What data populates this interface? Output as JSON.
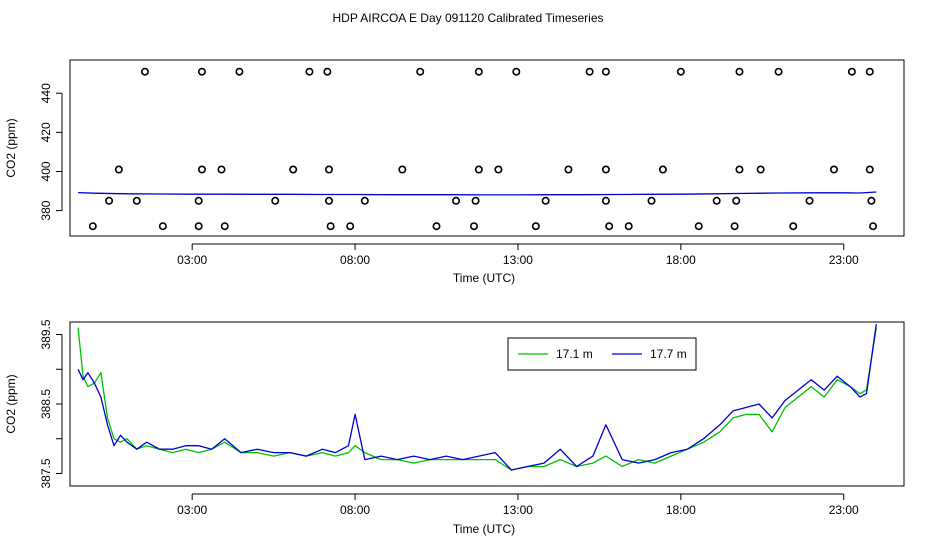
{
  "title": "HDP AIRCOA E  Day 091120  Calibrated Timeseries",
  "colors": {
    "green": "#00c000",
    "blue": "#0000d0",
    "points": "#000000"
  },
  "chart_data": [
    {
      "type": "scatter",
      "xlabel": "Time (UTC)",
      "ylabel": "CO2 (ppm)",
      "xlim": [
        -0.75,
        24.85
      ],
      "ylim": [
        367,
        457
      ],
      "xticks": [
        3,
        8,
        13,
        18,
        23
      ],
      "xtick_labels": [
        "03:00",
        "08:00",
        "13:00",
        "18:00",
        "23:00"
      ],
      "yticks": [
        380,
        400,
        420,
        440
      ],
      "yticks_labels": [
        "380",
        "400",
        "420",
        "440"
      ],
      "points": [
        {
          "x": 1.55,
          "y": 451
        },
        {
          "x": 3.3,
          "y": 451
        },
        {
          "x": 4.45,
          "y": 451
        },
        {
          "x": 6.6,
          "y": 451
        },
        {
          "x": 7.15,
          "y": 451
        },
        {
          "x": 10.0,
          "y": 451
        },
        {
          "x": 11.8,
          "y": 451
        },
        {
          "x": 12.95,
          "y": 451
        },
        {
          "x": 15.2,
          "y": 451
        },
        {
          "x": 15.7,
          "y": 451
        },
        {
          "x": 18.0,
          "y": 451
        },
        {
          "x": 19.8,
          "y": 451
        },
        {
          "x": 21.0,
          "y": 451
        },
        {
          "x": 23.25,
          "y": 451
        },
        {
          "x": 23.8,
          "y": 451
        },
        {
          "x": 0.75,
          "y": 401
        },
        {
          "x": 3.3,
          "y": 401
        },
        {
          "x": 3.9,
          "y": 401
        },
        {
          "x": 6.1,
          "y": 401
        },
        {
          "x": 7.2,
          "y": 401
        },
        {
          "x": 9.45,
          "y": 401
        },
        {
          "x": 11.8,
          "y": 401
        },
        {
          "x": 12.4,
          "y": 401
        },
        {
          "x": 14.55,
          "y": 401
        },
        {
          "x": 15.7,
          "y": 401
        },
        {
          "x": 17.45,
          "y": 401
        },
        {
          "x": 19.8,
          "y": 401
        },
        {
          "x": 20.45,
          "y": 401
        },
        {
          "x": 22.7,
          "y": 401
        },
        {
          "x": 23.8,
          "y": 401
        },
        {
          "x": 0.45,
          "y": 385
        },
        {
          "x": 1.3,
          "y": 385
        },
        {
          "x": 3.2,
          "y": 385
        },
        {
          "x": 5.55,
          "y": 385
        },
        {
          "x": 7.2,
          "y": 385
        },
        {
          "x": 8.3,
          "y": 385
        },
        {
          "x": 11.1,
          "y": 385
        },
        {
          "x": 11.7,
          "y": 385
        },
        {
          "x": 13.85,
          "y": 385
        },
        {
          "x": 15.7,
          "y": 385
        },
        {
          "x": 17.1,
          "y": 385
        },
        {
          "x": 19.1,
          "y": 385
        },
        {
          "x": 19.7,
          "y": 385
        },
        {
          "x": 21.95,
          "y": 385
        },
        {
          "x": 23.85,
          "y": 385
        },
        {
          "x": -0.05,
          "y": 372
        },
        {
          "x": 2.1,
          "y": 372
        },
        {
          "x": 3.2,
          "y": 372
        },
        {
          "x": 4.0,
          "y": 372
        },
        {
          "x": 7.25,
          "y": 372
        },
        {
          "x": 7.85,
          "y": 372
        },
        {
          "x": 10.5,
          "y": 372
        },
        {
          "x": 11.65,
          "y": 372
        },
        {
          "x": 13.55,
          "y": 372
        },
        {
          "x": 15.8,
          "y": 372
        },
        {
          "x": 16.4,
          "y": 372
        },
        {
          "x": 18.55,
          "y": 372
        },
        {
          "x": 19.65,
          "y": 372
        },
        {
          "x": 21.45,
          "y": 372
        },
        {
          "x": 23.9,
          "y": 372
        }
      ],
      "series": [
        {
          "type": "line",
          "color": "#0000d0",
          "x": [
            -0.5,
            0,
            1,
            2,
            3,
            4,
            5,
            6,
            7,
            8,
            9,
            10,
            11,
            12,
            13,
            14,
            15,
            16,
            17,
            18,
            19,
            20,
            21,
            22,
            23,
            23.5,
            24
          ],
          "y": [
            389.2,
            388.9,
            388.6,
            388.5,
            388.4,
            388.4,
            388.3,
            388.3,
            388.2,
            388.2,
            388.1,
            388.1,
            388.1,
            388.0,
            388.0,
            388.1,
            388.1,
            388.2,
            388.3,
            388.4,
            388.6,
            388.8,
            389.0,
            389.1,
            389.1,
            389.0,
            389.5
          ]
        }
      ]
    },
    {
      "type": "line",
      "xlabel": "Time (UTC)",
      "ylabel": "CO2 (ppm)",
      "xlim": [
        -0.75,
        24.85
      ],
      "ylim": [
        387.32,
        389.68
      ],
      "xticks": [
        3,
        8,
        13,
        18,
        23
      ],
      "xtick_labels": [
        "03:00",
        "08:00",
        "13:00",
        "18:00",
        "23:00"
      ],
      "yticks": [
        387.5,
        388.0,
        388.5,
        389.0,
        389.5
      ],
      "yticks_labels": [
        "387.5",
        "",
        "388.5",
        "",
        "389.5"
      ],
      "legend": {
        "position": "top-right"
      },
      "series": [
        {
          "name": "17.1 m",
          "color": "#00c000",
          "x": [
            -0.5,
            -0.35,
            -0.2,
            0,
            0.2,
            0.4,
            0.6,
            0.8,
            1.0,
            1.3,
            1.6,
            2.0,
            2.4,
            2.8,
            3.2,
            3.6,
            4.0,
            4.5,
            5.0,
            5.5,
            6.0,
            6.5,
            7.0,
            7.4,
            7.8,
            8.0,
            8.3,
            8.8,
            9.3,
            9.8,
            10.3,
            10.8,
            11.3,
            11.8,
            12.3,
            12.8,
            13.3,
            13.8,
            14.3,
            14.8,
            15.3,
            15.7,
            16.2,
            16.7,
            17.2,
            17.7,
            18.2,
            18.7,
            19.2,
            19.6,
            20.0,
            20.4,
            20.8,
            21.2,
            21.6,
            22.0,
            22.4,
            22.8,
            23.2,
            23.5,
            23.7,
            24.0
          ],
          "y": [
            389.6,
            388.9,
            388.75,
            388.8,
            388.95,
            388.3,
            388.0,
            387.95,
            388.0,
            387.85,
            387.9,
            387.85,
            387.8,
            387.85,
            387.8,
            387.85,
            387.95,
            387.8,
            387.8,
            387.75,
            387.8,
            387.75,
            387.8,
            387.75,
            387.8,
            387.9,
            387.8,
            387.7,
            387.7,
            387.65,
            387.7,
            387.7,
            387.7,
            387.7,
            387.7,
            387.55,
            387.6,
            387.6,
            387.7,
            387.6,
            387.65,
            387.75,
            387.6,
            387.7,
            387.65,
            387.75,
            387.85,
            387.95,
            388.1,
            388.3,
            388.35,
            388.35,
            388.1,
            388.45,
            388.6,
            388.75,
            388.6,
            388.85,
            388.75,
            388.65,
            388.7,
            389.6
          ]
        },
        {
          "name": "17.7 m",
          "color": "#0000d0",
          "x": [
            -0.5,
            -0.35,
            -0.2,
            0,
            0.2,
            0.4,
            0.6,
            0.8,
            1.0,
            1.3,
            1.6,
            2.0,
            2.4,
            2.8,
            3.2,
            3.6,
            4.0,
            4.5,
            5.0,
            5.5,
            6.0,
            6.5,
            7.0,
            7.4,
            7.8,
            8.0,
            8.3,
            8.8,
            9.3,
            9.8,
            10.3,
            10.8,
            11.3,
            11.8,
            12.3,
            12.8,
            13.3,
            13.8,
            14.3,
            14.8,
            15.3,
            15.7,
            16.2,
            16.7,
            17.2,
            17.7,
            18.2,
            18.7,
            19.2,
            19.6,
            20.0,
            20.4,
            20.8,
            21.2,
            21.6,
            22.0,
            22.4,
            22.8,
            23.2,
            23.5,
            23.7,
            24.0
          ],
          "y": [
            389.0,
            388.85,
            388.95,
            388.8,
            388.6,
            388.2,
            387.9,
            388.05,
            387.95,
            387.85,
            387.95,
            387.85,
            387.85,
            387.9,
            387.9,
            387.85,
            388.0,
            387.8,
            387.85,
            387.8,
            387.8,
            387.75,
            387.85,
            387.8,
            387.9,
            388.35,
            387.7,
            387.75,
            387.7,
            387.75,
            387.7,
            387.75,
            387.7,
            387.75,
            387.8,
            387.55,
            387.6,
            387.65,
            387.85,
            387.6,
            387.75,
            388.2,
            387.7,
            387.65,
            387.7,
            387.8,
            387.85,
            388.0,
            388.2,
            388.4,
            388.45,
            388.5,
            388.3,
            388.55,
            388.7,
            388.85,
            388.7,
            388.9,
            388.75,
            388.6,
            388.65,
            389.65
          ]
        }
      ]
    }
  ]
}
